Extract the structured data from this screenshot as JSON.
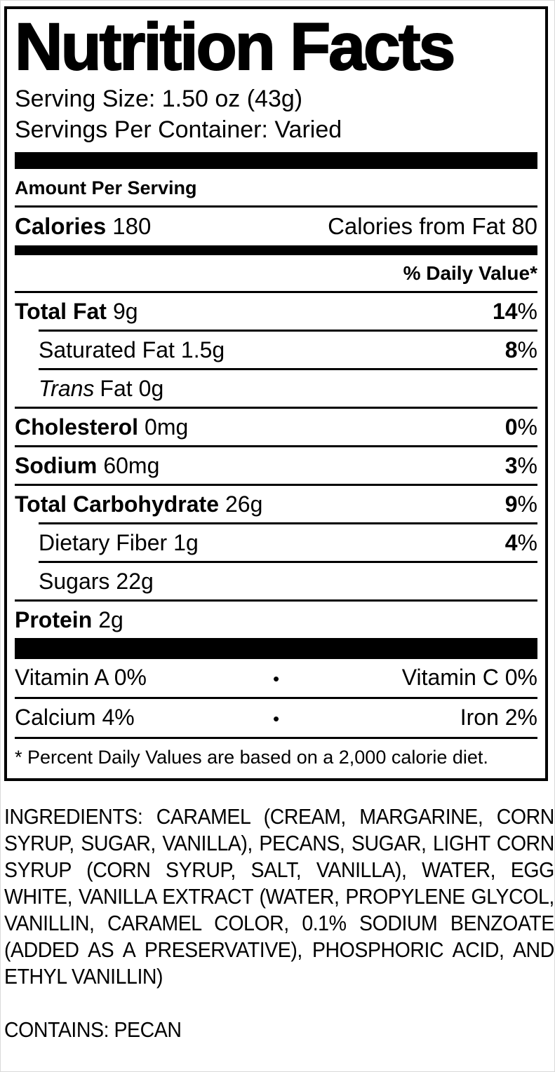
{
  "label": {
    "title": "Nutrition Facts",
    "serving_size": "Serving Size: 1.50 oz (43g)",
    "servings_per_container": "Servings Per Container: Varied",
    "amount_per_serving": "Amount Per Serving",
    "calories": {
      "label": "Calories",
      "value": "180",
      "from_fat": "Calories from Fat 80"
    },
    "daily_value_header": "% Daily Value*",
    "percent_sign": "%",
    "nutrients": [
      {
        "label": "Total Fat",
        "amount": "9g",
        "dv": "14"
      },
      {
        "label": "Saturated Fat",
        "amount": "1.5g",
        "dv": "8"
      },
      {
        "label_italic": "Trans",
        "label": "Fat",
        "amount": "0g"
      },
      {
        "label": "Cholesterol",
        "amount": "0mg",
        "dv": "0"
      },
      {
        "label": "Sodium",
        "amount": "60mg",
        "dv": "3"
      },
      {
        "label": "Total Carbohydrate",
        "amount": "26g",
        "dv": "9"
      },
      {
        "label": "Dietary Fiber",
        "amount": "1g",
        "dv": "4"
      },
      {
        "label": "Sugars",
        "amount": "22g"
      },
      {
        "label": "Protein",
        "amount": "2g"
      }
    ],
    "micronutrients": [
      {
        "left": "Vitamin A 0%",
        "bullet": "•",
        "right": "Vitamin C 0%"
      },
      {
        "left": "Calcium 4%",
        "bullet": "•",
        "right": "Iron 2%"
      }
    ],
    "footnote": "* Percent Daily Values are based on a 2,000 calorie diet.",
    "colors": {
      "ink": "#000000",
      "paper": "#ffffff"
    }
  },
  "ingredients_text": "INGREDIENTS: CARAMEL (CREAM, MARGARINE, CORN SYRUP, SUGAR, VANILLA), PECANS, SUGAR, LIGHT CORN SYRUP (CORN SYRUP, SALT, VANILLA), WATER, EGG WHITE, VANILLA EXTRACT (WATER, PROPYLENE GLYCOL, VANILLIN, CARAMEL COLOR, 0.1% SODIUM BENZOATE (ADDED AS A PRESERVATIVE), PHOSPHORIC ACID, AND ETHYL VANILLIN)",
  "contains_text": "CONTAINS: PECAN"
}
